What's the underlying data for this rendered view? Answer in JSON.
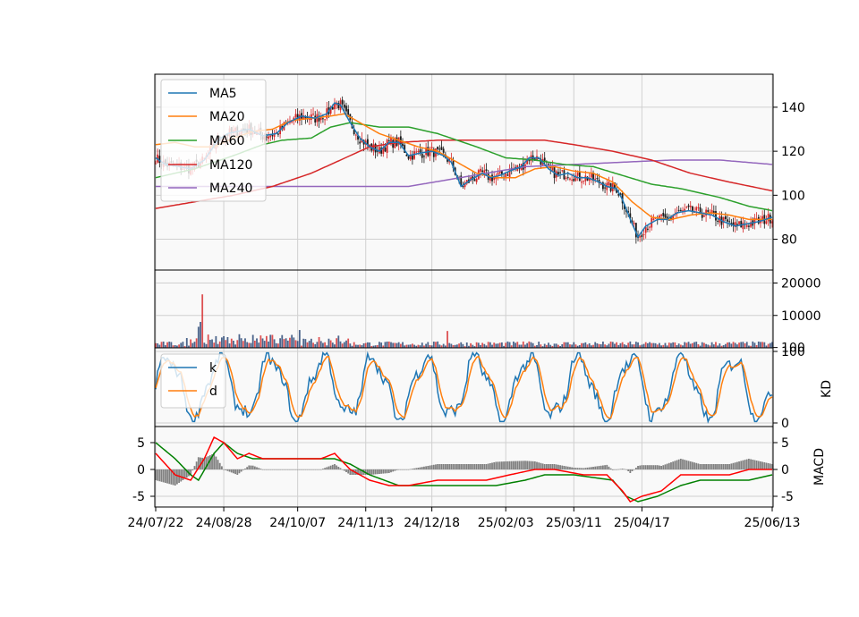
{
  "chart_data": {
    "type": "candlestick-composite",
    "x_tick_labels": [
      "24/07/22",
      "24/08/28",
      "24/10/07",
      "24/11/13",
      "24/12/18",
      "25/02/03",
      "25/03/11",
      "25/04/17",
      "25/06/13"
    ],
    "colors": {
      "up": "#d62728",
      "down": "#1a1a1a",
      "MA5": "#1f77b4",
      "MA20": "#ff7f0e",
      "MA60": "#2ca02c",
      "MA120": "#d62728",
      "MA240": "#9467bd",
      "k": "#1f77b4",
      "d": "#ff7f0e",
      "dif": "#ff0000",
      "dea": "#008000",
      "hist": "#808080"
    },
    "price_panel": {
      "ylim": [
        66,
        155
      ],
      "yticks": [
        "80",
        "100",
        "120",
        "140"
      ],
      "legend": [
        "MA5",
        "MA20",
        "MA60",
        "MA120",
        "MA240"
      ],
      "legend_position": "top-left",
      "series": {
        "MA5": [
          [
            0,
            117
          ],
          [
            5,
            114
          ],
          [
            12,
            113
          ],
          [
            18,
            112
          ],
          [
            25,
            116
          ],
          [
            32,
            125
          ],
          [
            37,
            128
          ],
          [
            42,
            129
          ],
          [
            48,
            130
          ],
          [
            55,
            127
          ],
          [
            62,
            128
          ],
          [
            68,
            133
          ],
          [
            75,
            136
          ],
          [
            82,
            135
          ],
          [
            88,
            137
          ],
          [
            92,
            142
          ],
          [
            95,
            141
          ],
          [
            100,
            133
          ],
          [
            105,
            126
          ],
          [
            110,
            122
          ],
          [
            115,
            120
          ],
          [
            120,
            124
          ],
          [
            125,
            124
          ],
          [
            130,
            118
          ],
          [
            135,
            119
          ],
          [
            142,
            120
          ],
          [
            148,
            118
          ],
          [
            152,
            115
          ],
          [
            157,
            104
          ],
          [
            162,
            107
          ],
          [
            168,
            110
          ],
          [
            172,
            108
          ],
          [
            177,
            109
          ],
          [
            182,
            111
          ],
          [
            188,
            113
          ],
          [
            192,
            117
          ],
          [
            197,
            117
          ],
          [
            202,
            112
          ],
          [
            207,
            109
          ],
          [
            212,
            110
          ],
          [
            217,
            108
          ],
          [
            222,
            108
          ],
          [
            228,
            106
          ],
          [
            232,
            104
          ],
          [
            237,
            103
          ],
          [
            240,
            98
          ],
          [
            245,
            87
          ],
          [
            248,
            81
          ],
          [
            252,
            86
          ],
          [
            258,
            89
          ],
          [
            263,
            89
          ],
          [
            268,
            92
          ],
          [
            274,
            93
          ],
          [
            280,
            92
          ],
          [
            286,
            91
          ],
          [
            292,
            88
          ],
          [
            298,
            86
          ],
          [
            304,
            87
          ],
          [
            310,
            88
          ],
          [
            317,
            90
          ]
        ],
        "MA20": [
          [
            0,
            123
          ],
          [
            10,
            124
          ],
          [
            20,
            122
          ],
          [
            30,
            122
          ],
          [
            40,
            126
          ],
          [
            50,
            129
          ],
          [
            60,
            130
          ],
          [
            70,
            134
          ],
          [
            80,
            135
          ],
          [
            90,
            136
          ],
          [
            97,
            137
          ],
          [
            105,
            133
          ],
          [
            115,
            128
          ],
          [
            125,
            125
          ],
          [
            135,
            122
          ],
          [
            145,
            120
          ],
          [
            155,
            115
          ],
          [
            165,
            110
          ],
          [
            175,
            108
          ],
          [
            185,
            108
          ],
          [
            195,
            112
          ],
          [
            205,
            113
          ],
          [
            215,
            111
          ],
          [
            225,
            110
          ],
          [
            235,
            106
          ],
          [
            245,
            97
          ],
          [
            255,
            90
          ],
          [
            265,
            89
          ],
          [
            275,
            91
          ],
          [
            285,
            92
          ],
          [
            295,
            91
          ],
          [
            305,
            89
          ],
          [
            317,
            89
          ]
        ],
        "MA60": [
          [
            0,
            108
          ],
          [
            20,
            112
          ],
          [
            40,
            118
          ],
          [
            55,
            123
          ],
          [
            65,
            125
          ],
          [
            80,
            126
          ],
          [
            90,
            131
          ],
          [
            100,
            133
          ],
          [
            115,
            131
          ],
          [
            130,
            131
          ],
          [
            145,
            128
          ],
          [
            165,
            122
          ],
          [
            180,
            117
          ],
          [
            195,
            116
          ],
          [
            210,
            114
          ],
          [
            225,
            113
          ],
          [
            240,
            109
          ],
          [
            255,
            105
          ],
          [
            270,
            103
          ],
          [
            290,
            99
          ],
          [
            305,
            95
          ],
          [
            317,
            93
          ]
        ],
        "MA120": [
          [
            0,
            94
          ],
          [
            20,
            97
          ],
          [
            40,
            100
          ],
          [
            60,
            104
          ],
          [
            80,
            110
          ],
          [
            95,
            116
          ],
          [
            110,
            122
          ],
          [
            125,
            124
          ],
          [
            145,
            125
          ],
          [
            165,
            125
          ],
          [
            180,
            125
          ],
          [
            200,
            125
          ],
          [
            215,
            123
          ],
          [
            235,
            120
          ],
          [
            255,
            116
          ],
          [
            275,
            110
          ],
          [
            295,
            106
          ],
          [
            317,
            102
          ]
        ],
        "MA240": [
          [
            0,
            104
          ],
          [
            60,
            104
          ],
          [
            130,
            104
          ],
          [
            150,
            107
          ],
          [
            170,
            110
          ],
          [
            190,
            113
          ],
          [
            215,
            114
          ],
          [
            240,
            115
          ],
          [
            265,
            116
          ],
          [
            290,
            116
          ],
          [
            317,
            114
          ]
        ]
      }
    },
    "volume_panel": {
      "ylim": [
        0,
        24000
      ],
      "yticks": [
        "100",
        "10000",
        "20000"
      ]
    },
    "kd_panel": {
      "ylim": [
        -5,
        105
      ],
      "yticks": [
        "0",
        "100"
      ],
      "ylabel": "KD",
      "legend": [
        "k",
        "d"
      ],
      "legend_position": "top-left"
    },
    "macd_panel": {
      "ylim": [
        -7,
        8
      ],
      "yticks": [
        "-5",
        "0",
        "5"
      ],
      "ylabel": "MACD"
    }
  }
}
